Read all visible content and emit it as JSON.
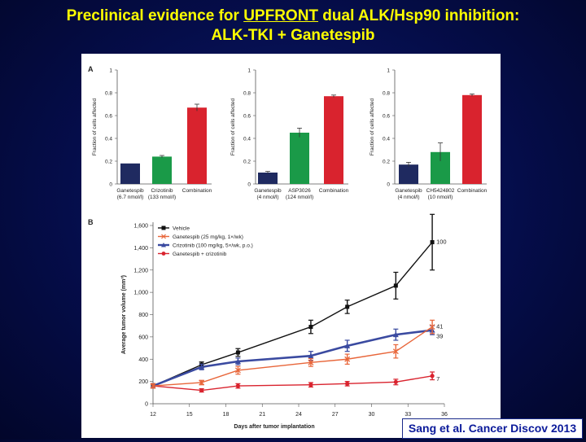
{
  "slide": {
    "title_prefix": "Preclinical evidence for ",
    "title_underlined": "UPFRONT",
    "title_suffix": " dual ALK/Hsp90 inhibition:",
    "title_line2": "ALK-TKI + Ganetespib",
    "citation": "Sang et al. Cancer Discov 2013"
  },
  "colors": {
    "navy": "#1f2a60",
    "green": "#1a9a48",
    "red": "#d9232e",
    "black": "#111111",
    "orange": "#e8663a",
    "blue": "#3a4aa0"
  },
  "chart_data": [
    {
      "panel": "A",
      "type": "bar",
      "ylabel": "Fraction of cells affected",
      "ylim": [
        0,
        1
      ],
      "yticks": [
        "0",
        "0.2",
        "0.4",
        "0.6",
        "0.8",
        "1"
      ],
      "categories": [
        {
          "l1": "Ganetespib",
          "l2": "(6.7 nmol/l)"
        },
        {
          "l1": "Crizotinib",
          "l2": "(133 nmol/l)"
        },
        {
          "l1": "Combination",
          "l2": ""
        }
      ],
      "values": [
        0.18,
        0.24,
        0.67
      ],
      "errors": [
        0.0,
        0.01,
        0.03
      ]
    },
    {
      "panel": "",
      "type": "bar",
      "ylabel": "Fraction of cells affected",
      "ylim": [
        0,
        1
      ],
      "yticks": [
        "0",
        "0.2",
        "0.4",
        "0.6",
        "0.8",
        "1"
      ],
      "categories": [
        {
          "l1": "Ganetespib",
          "l2": "(4 nmol/l)"
        },
        {
          "l1": "ASP3026",
          "l2": "(124 nmol/l)"
        },
        {
          "l1": "Combination",
          "l2": ""
        }
      ],
      "values": [
        0.1,
        0.45,
        0.77
      ],
      "errors": [
        0.01,
        0.04,
        0.01
      ]
    },
    {
      "panel": "",
      "type": "bar",
      "ylabel": "Fraction of cells affected",
      "ylim": [
        0,
        1
      ],
      "yticks": [
        "0",
        "0.2",
        "0.4",
        "0.6",
        "0.8",
        "1"
      ],
      "categories": [
        {
          "l1": "Ganetespib",
          "l2": "(4 nmol/l)"
        },
        {
          "l1": "CH5424802",
          "l2": "(10 nmol/l)"
        },
        {
          "l1": "Combination",
          "l2": ""
        }
      ],
      "values": [
        0.17,
        0.28,
        0.78
      ],
      "errors": [
        0.02,
        0.08,
        0.01
      ]
    },
    {
      "panel": "B",
      "type": "line",
      "xlabel": "Days after tumor implantation",
      "ylabel": "Average tumor volume (mm³)",
      "xlim": [
        12,
        36
      ],
      "ylim": [
        0,
        1600
      ],
      "xticks": [
        12,
        15,
        18,
        21,
        24,
        27,
        30,
        33,
        36
      ],
      "yticks": [
        "0",
        "200",
        "400",
        "600",
        "800",
        "1,000",
        "1,200",
        "1,400",
        "1,600"
      ],
      "legend": "top-left",
      "series": [
        {
          "name": "Vehicle",
          "color": "#111111",
          "end_label": "100",
          "x": [
            12,
            16,
            19,
            25,
            28,
            32,
            35
          ],
          "y": [
            160,
            350,
            460,
            690,
            870,
            1060,
            1450
          ],
          "err": [
            20,
            25,
            35,
            60,
            60,
            120,
            250
          ]
        },
        {
          "name": "Ganetespib (25 mg/kg, 1×/wk)",
          "color": "#e8663a",
          "end_label": "41",
          "x": [
            12,
            16,
            19,
            25,
            28,
            32,
            35
          ],
          "y": [
            160,
            190,
            300,
            370,
            400,
            470,
            690
          ],
          "err": [
            20,
            20,
            35,
            35,
            45,
            60,
            60
          ]
        },
        {
          "name": "Crizotinib (100 mg/kg, 5×/wk, p.o.)",
          "color": "#3a4aa0",
          "end_label": "39",
          "x": [
            12,
            16,
            19,
            25,
            28,
            32,
            35
          ],
          "y": [
            160,
            330,
            380,
            430,
            520,
            620,
            660
          ],
          "err": [
            20,
            25,
            30,
            40,
            50,
            50,
            40
          ]
        },
        {
          "name": "Ganetespib + crizotinib",
          "color": "#d9232e",
          "end_label": "7",
          "x": [
            12,
            16,
            19,
            25,
            28,
            32,
            35
          ],
          "y": [
            160,
            120,
            160,
            170,
            180,
            195,
            250
          ],
          "err": [
            15,
            15,
            20,
            20,
            20,
            25,
            35
          ]
        }
      ]
    }
  ]
}
